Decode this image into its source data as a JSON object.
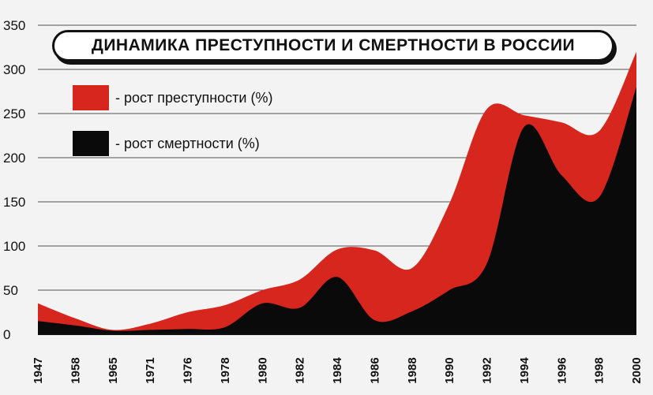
{
  "chart_data": {
    "type": "area",
    "title": "ДИНАМИКА ПРЕСТУПНОСТИ И СМЕРТНОСТИ В РОССИИ",
    "xlabel": "",
    "ylabel": "",
    "ylim": [
      0,
      350
    ],
    "yticks": [
      "0",
      "50",
      "100",
      "150",
      "200",
      "250",
      "300",
      "350"
    ],
    "grid": true,
    "legend_position": "top-left",
    "categories": [
      "1947",
      "1958",
      "1965",
      "1971",
      "1976",
      "1978",
      "1980",
      "1982",
      "1984",
      "1986",
      "1988",
      "1990",
      "1992",
      "1994",
      "1996",
      "1998",
      "2000"
    ],
    "series": [
      {
        "name": "- рост преступности (%)",
        "color": "#d7261d",
        "values": [
          35,
          18,
          5,
          12,
          25,
          33,
          50,
          62,
          96,
          95,
          75,
          148,
          255,
          248,
          240,
          230,
          320
        ]
      },
      {
        "name": "- рост смертности (%)",
        "color": "#0a0a0a",
        "values": [
          15,
          10,
          4,
          5,
          6,
          8,
          35,
          30,
          65,
          16,
          26,
          50,
          80,
          235,
          180,
          155,
          280
        ]
      }
    ]
  }
}
